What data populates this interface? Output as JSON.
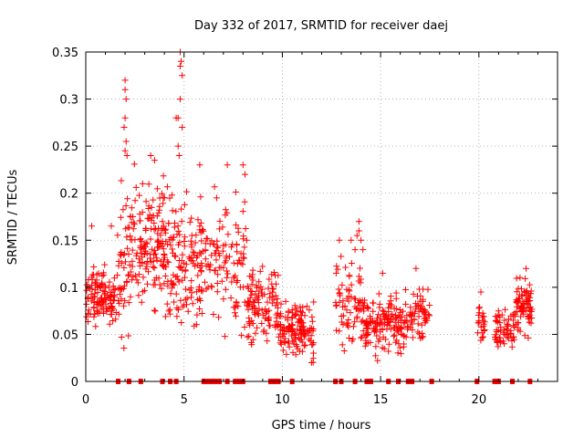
{
  "chart_data": {
    "type": "scatter",
    "title": "Day 332 of 2017, SRMTID for receiver daej",
    "xlabel": "GPS time / hours",
    "ylabel": "SRMTID / TECUs",
    "xlim": [
      0,
      24
    ],
    "ylim": [
      0,
      0.35
    ],
    "x_ticks": [
      0,
      5,
      10,
      15,
      20
    ],
    "x_tick_labels": [
      "0",
      "5",
      "10",
      "15",
      "20"
    ],
    "y_ticks": [
      0,
      0.05,
      0.1,
      0.15,
      0.2,
      0.25,
      0.3,
      0.35
    ],
    "y_tick_labels": [
      "0",
      "0.05",
      "0.1",
      "0.15",
      "0.2",
      "0.25",
      "0.3",
      "0.35"
    ],
    "grid": true,
    "marker": "+",
    "color": "#ff0000",
    "clusters": [
      {
        "x_start": 0.0,
        "x_end": 1.5,
        "y_center": 0.09,
        "y_spread": 0.05,
        "n": 120
      },
      {
        "x_start": 1.5,
        "x_end": 2.2,
        "y_center": 0.12,
        "y_spread": 0.12,
        "n": 45
      },
      {
        "x_start": 2.2,
        "x_end": 4.0,
        "y_center": 0.15,
        "y_spread": 0.09,
        "n": 150
      },
      {
        "x_start": 4.0,
        "x_end": 6.0,
        "y_center": 0.13,
        "y_spread": 0.1,
        "n": 150
      },
      {
        "x_start": 6.0,
        "x_end": 8.2,
        "y_center": 0.13,
        "y_spread": 0.1,
        "n": 110
      },
      {
        "x_start": 8.2,
        "x_end": 9.8,
        "y_center": 0.08,
        "y_spread": 0.06,
        "n": 110
      },
      {
        "x_start": 9.8,
        "x_end": 11.6,
        "y_center": 0.055,
        "y_spread": 0.04,
        "n": 140
      },
      {
        "x_start": 12.7,
        "x_end": 14.2,
        "y_center": 0.08,
        "y_spread": 0.07,
        "n": 80
      },
      {
        "x_start": 14.2,
        "x_end": 16.2,
        "y_center": 0.06,
        "y_spread": 0.04,
        "n": 140
      },
      {
        "x_start": 16.2,
        "x_end": 17.5,
        "y_center": 0.07,
        "y_spread": 0.04,
        "n": 70
      },
      {
        "x_start": 19.9,
        "x_end": 20.3,
        "y_center": 0.065,
        "y_spread": 0.03,
        "n": 22
      },
      {
        "x_start": 20.8,
        "x_end": 21.8,
        "y_center": 0.055,
        "y_spread": 0.03,
        "n": 60
      },
      {
        "x_start": 21.8,
        "x_end": 22.7,
        "y_center": 0.08,
        "y_spread": 0.04,
        "n": 80
      }
    ],
    "peaks": [
      {
        "x": 2.0,
        "y": 0.32
      },
      {
        "x": 2.0,
        "y": 0.31
      },
      {
        "x": 2.05,
        "y": 0.3
      },
      {
        "x": 2.0,
        "y": 0.28
      },
      {
        "x": 1.95,
        "y": 0.27
      },
      {
        "x": 2.05,
        "y": 0.255
      },
      {
        "x": 2.0,
        "y": 0.245
      },
      {
        "x": 2.1,
        "y": 0.24
      },
      {
        "x": 4.8,
        "y": 0.35
      },
      {
        "x": 4.85,
        "y": 0.34
      },
      {
        "x": 4.8,
        "y": 0.335
      },
      {
        "x": 4.9,
        "y": 0.325
      },
      {
        "x": 4.8,
        "y": 0.3
      },
      {
        "x": 4.7,
        "y": 0.28
      },
      {
        "x": 4.6,
        "y": 0.28
      },
      {
        "x": 4.9,
        "y": 0.27
      },
      {
        "x": 4.7,
        "y": 0.25
      },
      {
        "x": 4.75,
        "y": 0.24
      },
      {
        "x": 3.3,
        "y": 0.24
      },
      {
        "x": 3.5,
        "y": 0.235
      },
      {
        "x": 7.2,
        "y": 0.23
      },
      {
        "x": 8.0,
        "y": 0.23
      },
      {
        "x": 5.8,
        "y": 0.23
      },
      {
        "x": 8.1,
        "y": 0.22
      },
      {
        "x": 13.9,
        "y": 0.17
      },
      {
        "x": 13.9,
        "y": 0.16
      },
      {
        "x": 13.8,
        "y": 0.155
      },
      {
        "x": 14.0,
        "y": 0.15
      },
      {
        "x": 13.7,
        "y": 0.14
      },
      {
        "x": 14.1,
        "y": 0.14
      },
      {
        "x": 13.5,
        "y": 0.15
      },
      {
        "x": 12.9,
        "y": 0.15
      },
      {
        "x": 1.3,
        "y": 0.165
      },
      {
        "x": 0.3,
        "y": 0.165
      },
      {
        "x": 22.4,
        "y": 0.12
      },
      {
        "x": 16.8,
        "y": 0.12
      },
      {
        "x": 15.1,
        "y": 0.115
      },
      {
        "x": 20.1,
        "y": 0.095
      }
    ],
    "baseline_marks_x": [
      1.65,
      2.2,
      2.8,
      3.9,
      4.3,
      4.6,
      6.0,
      6.2,
      6.4,
      6.6,
      6.8,
      7.2,
      7.6,
      7.8,
      8.0,
      9.4,
      9.6,
      9.8,
      10.5,
      12.7,
      13.0,
      13.7,
      14.3,
      14.5,
      15.4,
      15.9,
      16.4,
      16.6,
      17.6,
      19.9,
      20.8,
      21.0,
      21.7,
      22.6
    ]
  }
}
